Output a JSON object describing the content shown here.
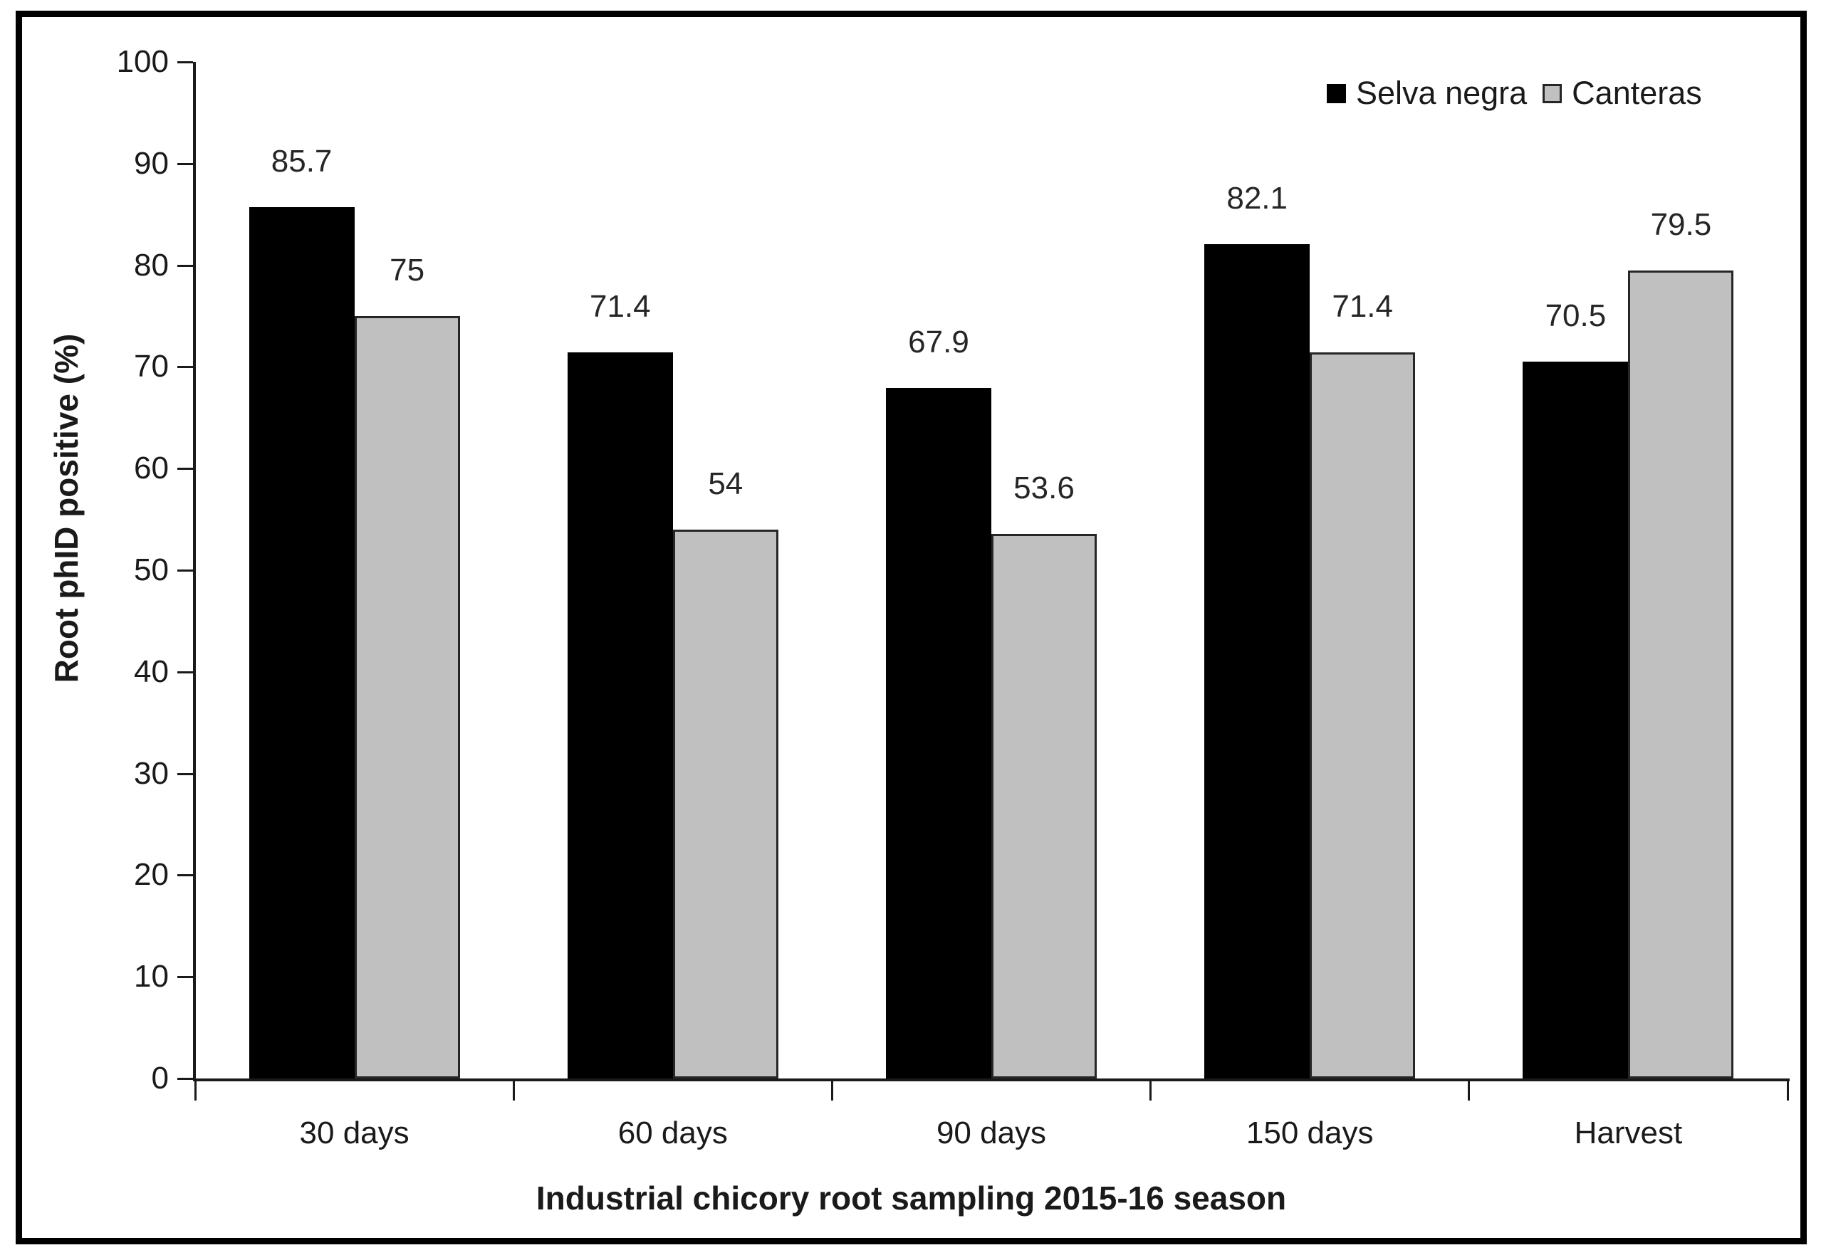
{
  "chart_data": {
    "type": "bar",
    "title": "",
    "xlabel": "Industrial chicory root sampling 2015-16 season",
    "ylabel": "Root phID positive (%)",
    "categories": [
      "30 days",
      "60 days",
      "90 days",
      "150 days",
      "Harvest"
    ],
    "series": [
      {
        "name": "Selva negra",
        "color": "#000000",
        "border_color": "#000000",
        "values": [
          85.7,
          71.4,
          67.9,
          82.1,
          70.5
        ],
        "labels": [
          "85.7",
          "71.4",
          "67.9",
          "82.1",
          "70.5"
        ]
      },
      {
        "name": "Canteras",
        "color": "#c0c0c0",
        "border_color": "#262626",
        "values": [
          75,
          54,
          53.6,
          71.4,
          79.5
        ],
        "labels": [
          "75",
          "54",
          "53.6",
          "71.4",
          "79.5"
        ]
      }
    ],
    "y_ticks": [
      "100",
      "90",
      "80",
      "70",
      "60",
      "50",
      "40",
      "30",
      "20",
      "10",
      "0"
    ],
    "ylim": [
      0,
      100
    ],
    "legend_position": "top-right",
    "grid": false,
    "axis_color": "#1a1a1a"
  }
}
